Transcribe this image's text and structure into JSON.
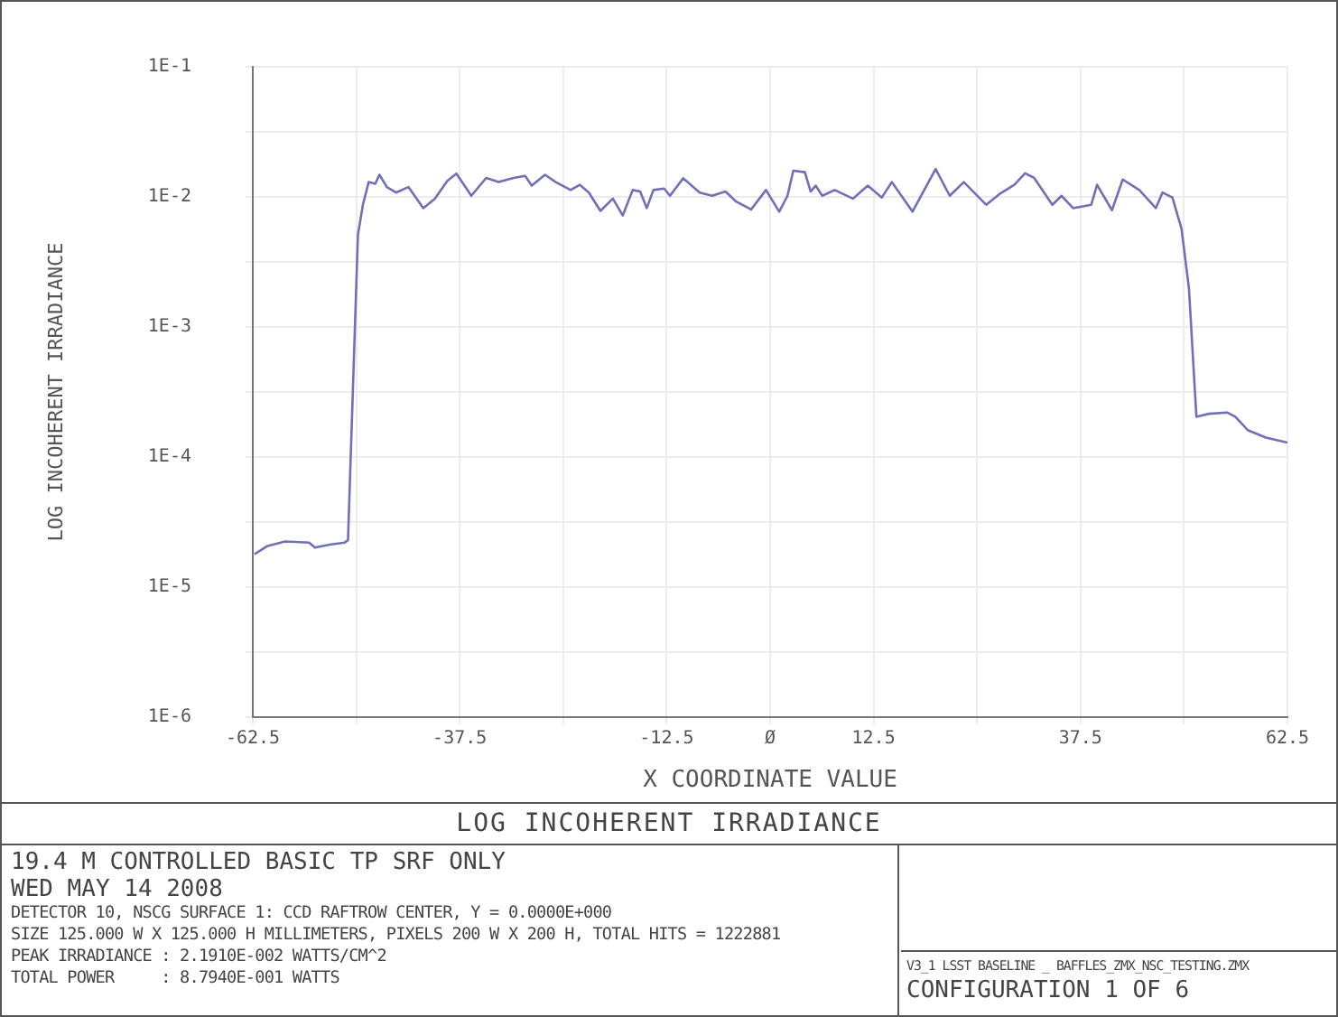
{
  "chart_data": {
    "type": "line",
    "title": "LOG INCOHERENT IRRADIANCE",
    "xlabel": "X COORDINATE VALUE",
    "ylabel": "LOG INCOHERENT IRRADIANCE",
    "annotations": [
      "19.4 M CONTROLLED BASIC TP SRF ONLY",
      "WED MAY 14 2008",
      "DETECTOR 10, NSCG SURFACE 1: CCD RAFTROW CENTER, Y = 0.0000E+000",
      "SIZE 125.000 W X 125.000 H MILLIMETERS, PIXELS 200 W X 200 H, TOTAL HITS = 1222881",
      "PEAK IRRADIANCE : 2.1910E-002 WATTS/CM^2",
      "TOTAL POWER     : 8.7940E-001 WATTS",
      "V3_1 LSST BASELINE _ BAFFLES_ZMX_NSC_TESTING.ZMX",
      "CONFIGURATION 1 OF 6"
    ],
    "x": [
      -62.3,
      -60.8,
      -58.6,
      -55.7,
      -55.0,
      -53.2,
      -51.4,
      -51.0,
      -50.5,
      -49.8,
      -49.2,
      -48.5,
      -47.7,
      -47.2,
      -46.3,
      -45.2,
      -43.7,
      -41.9,
      -40.5,
      -39.0,
      -37.9,
      -36.1,
      -34.3,
      -32.8,
      -31.0,
      -29.6,
      -28.8,
      -27.2,
      -25.9,
      -24.1,
      -23.0,
      -21.9,
      -20.5,
      -19.0,
      -17.8,
      -16.6,
      -15.7,
      -14.9,
      -14.1,
      -12.8,
      -12.1,
      -10.5,
      -8.5,
      -7.0,
      -5.4,
      -4.1,
      -2.3,
      -0.5,
      1.1,
      2.1,
      2.8,
      4.2,
      4.9,
      5.5,
      6.3,
      7.8,
      10.0,
      11.8,
      13.5,
      14.7,
      17.2,
      20.0,
      21.7,
      23.4,
      26.1,
      27.7,
      29.5,
      30.8,
      31.9,
      34.1,
      35.2,
      36.6,
      38.8,
      39.5,
      41.3,
      42.6,
      44.6,
      46.6,
      47.4,
      48.6,
      49.7,
      50.6,
      51.5,
      53.0,
      55.2,
      56.2,
      57.7,
      59.9,
      62.5
    ],
    "series": [
      {
        "color": "#7070b8",
        "values": [
          1.79e-05,
          2.06e-05,
          2.24e-05,
          2.2e-05,
          2.01e-05,
          2.12e-05,
          2.2e-05,
          2.29e-05,
          0.000215,
          0.0051,
          0.0087,
          0.013,
          0.0126,
          0.0148,
          0.0119,
          0.0108,
          0.0119,
          0.0082,
          0.0097,
          0.0133,
          0.0151,
          0.0102,
          0.014,
          0.013,
          0.014,
          0.0145,
          0.0122,
          0.0148,
          0.013,
          0.0113,
          0.0124,
          0.0108,
          0.0078,
          0.0097,
          0.0072,
          0.0113,
          0.011,
          0.0082,
          0.0113,
          0.0116,
          0.0102,
          0.0139,
          0.0108,
          0.0102,
          0.011,
          0.0092,
          0.008,
          0.0113,
          0.0077,
          0.0102,
          0.0159,
          0.0155,
          0.011,
          0.0122,
          0.0102,
          0.0113,
          0.0097,
          0.0122,
          0.0099,
          0.013,
          0.0077,
          0.0164,
          0.0102,
          0.013,
          0.0087,
          0.0105,
          0.0124,
          0.0152,
          0.014,
          0.0087,
          0.0102,
          0.0082,
          0.0087,
          0.0124,
          0.0079,
          0.0136,
          0.0113,
          0.0082,
          0.0108,
          0.0099,
          0.0057,
          0.00198,
          0.000204,
          0.000215,
          0.00022,
          0.000204,
          0.000161,
          0.000141,
          0.000129
        ]
      }
    ],
    "log": "y",
    "xlim": [
      -62.5,
      62.5
    ],
    "ylim": [
      1e-06,
      0.1
    ],
    "xticks": [
      -62.5,
      {
        "value": -50,
        "label": null
      },
      -37.5,
      {
        "value": -25,
        "label": null
      },
      -12.5,
      {
        "value": 0,
        "label": "Ø"
      },
      12.5,
      {
        "value": 25,
        "label": null
      },
      37.5,
      {
        "value": 50,
        "label": null
      },
      62.5
    ],
    "yticks": [
      {
        "value": 1e-06,
        "label": "1E-6"
      },
      {
        "value": 3.16e-06,
        "label": null
      },
      {
        "value": 1e-05,
        "label": "1E-5"
      },
      {
        "value": 3.16e-05,
        "label": null
      },
      {
        "value": 0.0001,
        "label": "1E-4"
      },
      {
        "value": 0.000316,
        "label": null
      },
      {
        "value": 0.001,
        "label": "1E-3"
      },
      {
        "value": 0.00316,
        "label": null
      },
      {
        "value": 0.01,
        "label": "1E-2"
      },
      {
        "value": 0.0316,
        "label": null
      },
      {
        "value": 0.1,
        "label": "1E-1"
      }
    ],
    "grid": true,
    "legend": false,
    "marker": "none",
    "line_style": "solid"
  }
}
